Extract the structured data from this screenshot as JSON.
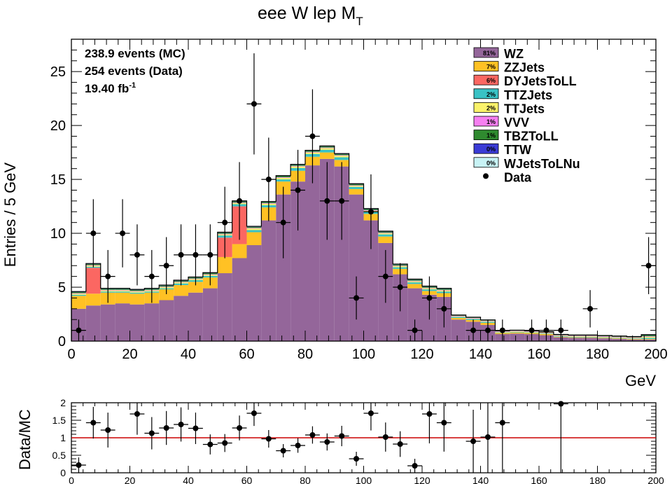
{
  "chart_data": {
    "type": "stacked-histogram",
    "title": "eee W lep M",
    "title_sub": "T",
    "xlabel": "GeV",
    "ylabel": "Entries / 5 GeV",
    "xlim": [
      0,
      200
    ],
    "ylim": [
      0,
      28
    ],
    "bin_width": 5,
    "xticks": [
      0,
      20,
      40,
      60,
      80,
      100,
      120,
      140,
      160,
      180,
      200
    ],
    "yticks": [
      0,
      5,
      10,
      15,
      20,
      25
    ],
    "info": {
      "mc_events": "238.9 events (MC)",
      "data_events": "254 events (Data)",
      "lumi": "19.40 fb",
      "lumi_sup": "-1"
    },
    "stack_order_bottom_to_top": [
      "WZ",
      "ZZJets",
      "DYJetsToLL",
      "TTZJets",
      "TTJets",
      "VVV",
      "TBZToLL",
      "TTW",
      "WJetsToLNu"
    ],
    "series": [
      {
        "name": "WZ",
        "percent": "81%",
        "color": "#94669a",
        "values": [
          3.0,
          3.3,
          3.4,
          3.5,
          3.4,
          3.5,
          3.8,
          4.2,
          4.5,
          4.9,
          6.3,
          7.7,
          8.9,
          11.2,
          13.6,
          14.8,
          16.3,
          16.9,
          16.2,
          13.6,
          11.2,
          9.1,
          6.2,
          4.9,
          4.3,
          4.1,
          2.0,
          1.8,
          1.5,
          0.65,
          0.7,
          0.65,
          0.55,
          0.35,
          0.3,
          0.3,
          0.25,
          0.2,
          0.15,
          0.15
        ]
      },
      {
        "name": "ZZJets",
        "percent": "7%",
        "color": "#ffc124",
        "values": [
          1.2,
          1.1,
          1.1,
          1.0,
          1.0,
          1.0,
          1.0,
          1.0,
          1.0,
          1.0,
          1.5,
          1.3,
          1.2,
          1.2,
          1.2,
          1.0,
          0.8,
          0.6,
          0.6,
          0.5,
          0.6,
          0.6,
          0.5,
          0.4,
          0.35,
          0.35,
          0.15,
          0.15,
          0.2,
          0.1,
          0.1,
          0.1,
          0.1,
          0.05,
          0.05,
          0.05,
          0.05,
          0.05,
          0.05,
          0.05
        ]
      },
      {
        "name": "DYJetsToLL",
        "percent": "6%",
        "color": "#fb6762",
        "values": [
          0.0,
          2.4,
          0.0,
          0.0,
          0.0,
          0.0,
          0.0,
          0.0,
          0.0,
          0.0,
          1.8,
          3.5,
          0.0,
          0.0,
          0.0,
          0.0,
          0.0,
          0.0,
          0.0,
          0.0,
          0.0,
          0.0,
          0.0,
          0.0,
          0.0,
          0.0,
          0.0,
          0.0,
          0.0,
          0.0,
          0.0,
          0.0,
          0.0,
          0.0,
          0.0,
          0.0,
          0.0,
          0.0,
          0.0,
          0.0
        ]
      },
      {
        "name": "TTZJets",
        "percent": "2%",
        "color": "#39c2c5",
        "values": [
          0.1,
          0.1,
          0.1,
          0.1,
          0.1,
          0.1,
          0.1,
          0.15,
          0.15,
          0.15,
          0.2,
          0.2,
          0.2,
          0.2,
          0.2,
          0.25,
          0.25,
          0.25,
          0.25,
          0.2,
          0.2,
          0.2,
          0.15,
          0.15,
          0.15,
          0.15,
          0.1,
          0.1,
          0.1,
          0.05,
          0.05,
          0.05,
          0.05,
          0.05,
          0.05,
          0.05,
          0.05,
          0.05,
          0.05,
          0.1
        ]
      },
      {
        "name": "TTJets",
        "percent": "2%",
        "color": "#faf26a",
        "values": [
          0.1,
          0.1,
          0.1,
          0.1,
          0.1,
          0.1,
          0.1,
          0.1,
          0.1,
          0.1,
          0.1,
          0.1,
          0.15,
          0.15,
          0.15,
          0.15,
          0.15,
          0.15,
          0.15,
          0.1,
          0.1,
          0.1,
          0.1,
          0.1,
          0.1,
          0.1,
          0.05,
          0.05,
          0.05,
          0.05,
          0.05,
          0.05,
          0.05,
          0.05,
          0.05,
          0.05,
          0.05,
          0.05,
          0.05,
          0.1
        ]
      },
      {
        "name": "VVV",
        "percent": "1%",
        "color": "#f67ff1",
        "values": [
          0.05,
          0.05,
          0.05,
          0.05,
          0.05,
          0.05,
          0.05,
          0.05,
          0.05,
          0.05,
          0.05,
          0.05,
          0.05,
          0.05,
          0.05,
          0.05,
          0.05,
          0.05,
          0.05,
          0.05,
          0.05,
          0.05,
          0.05,
          0.05,
          0.05,
          0.05,
          0.05,
          0.05,
          0.05,
          0.05,
          0.05,
          0.05,
          0.05,
          0.05,
          0.05,
          0.05,
          0.05,
          0.05,
          0.05,
          0.05
        ]
      },
      {
        "name": "TBZToLL",
        "percent": "1%",
        "color": "#2f8a2f",
        "values": [
          0.1,
          0.1,
          0.1,
          0.1,
          0.1,
          0.1,
          0.1,
          0.1,
          0.1,
          0.1,
          0.1,
          0.1,
          0.1,
          0.1,
          0.1,
          0.1,
          0.1,
          0.1,
          0.1,
          0.1,
          0.1,
          0.1,
          0.1,
          0.1,
          0.1,
          0.1,
          0.05,
          0.05,
          0.05,
          0.05,
          0.05,
          0.05,
          0.05,
          0.05,
          0.05,
          0.05,
          0.05,
          0.05,
          0.05,
          0.1
        ]
      },
      {
        "name": "TTW",
        "percent": "0%",
        "color": "#3b3bd6",
        "values": [
          0.05,
          0.05,
          0.05,
          0.05,
          0.05,
          0.05,
          0.05,
          0.05,
          0.05,
          0.05,
          0.05,
          0.05,
          0.05,
          0.05,
          0.05,
          0.05,
          0.05,
          0.05,
          0.05,
          0.05,
          0.05,
          0.05,
          0.05,
          0.05,
          0.05,
          0.05,
          0.02,
          0.02,
          0.02,
          0.02,
          0.02,
          0.02,
          0.02,
          0.02,
          0.02,
          0.02,
          0.02,
          0.02,
          0.02,
          0.05
        ]
      },
      {
        "name": "WJetsToLNu",
        "percent": "0%",
        "color": "#c8f3f5",
        "values": [
          0.0,
          0.0,
          0.0,
          0.0,
          0.0,
          0.0,
          0.0,
          0.0,
          0.0,
          0.0,
          0.0,
          0.0,
          0.0,
          0.0,
          0.0,
          0.0,
          0.0,
          0.0,
          0.0,
          0.0,
          0.0,
          0.0,
          0.0,
          0.0,
          0.0,
          0.0,
          0.0,
          0.0,
          0.0,
          0.0,
          0.0,
          0.0,
          0.0,
          0.0,
          0.0,
          0.0,
          0.0,
          0.0,
          0.0,
          0.0
        ]
      }
    ],
    "data": {
      "name": "Data",
      "x": [
        2.5,
        7.5,
        12.5,
        17.5,
        22.5,
        27.5,
        32.5,
        37.5,
        42.5,
        47.5,
        52.5,
        57.5,
        62.5,
        67.5,
        72.5,
        77.5,
        82.5,
        87.5,
        92.5,
        97.5,
        102.5,
        107.5,
        112.5,
        117.5,
        122.5,
        127.5,
        137.5,
        142.5,
        147.5,
        157.5,
        162.5,
        167.5,
        177.5,
        197.5
      ],
      "y": [
        1,
        10,
        6,
        10,
        8,
        6,
        7,
        8,
        8,
        8,
        11,
        13,
        22,
        15,
        11,
        14,
        19,
        13,
        13,
        4,
        12,
        6,
        5,
        1,
        4,
        3,
        1,
        1,
        1,
        1,
        1,
        1,
        3,
        7
      ]
    },
    "ratio": {
      "ylabel": "Data/MC",
      "ylim": [
        0,
        2
      ],
      "yticks": [
        "0",
        "0.5",
        "1",
        "1.5",
        "2"
      ],
      "xticks": [
        0,
        20,
        40,
        60,
        80,
        100,
        120,
        140,
        160,
        180,
        200
      ],
      "reference_line": 1,
      "line_color": "#cc0000",
      "x": [
        2.5,
        7.5,
        12.5,
        22.5,
        27.5,
        32.5,
        37.5,
        42.5,
        47.5,
        52.5,
        57.5,
        62.5,
        67.5,
        72.5,
        77.5,
        82.5,
        87.5,
        92.5,
        97.5,
        102.5,
        107.5,
        112.5,
        117.5,
        122.5,
        127.5,
        137.5,
        142.5,
        147.5,
        167.5
      ],
      "y": [
        0.22,
        1.43,
        1.22,
        1.68,
        1.13,
        1.28,
        1.38,
        1.27,
        0.81,
        0.85,
        1.28,
        1.7,
        0.97,
        0.63,
        0.78,
        1.08,
        0.88,
        1.05,
        0.4,
        1.7,
        1.02,
        0.82,
        0.2,
        1.68,
        1.43,
        0.9,
        1.02,
        1.43,
        1.97
      ]
    }
  }
}
